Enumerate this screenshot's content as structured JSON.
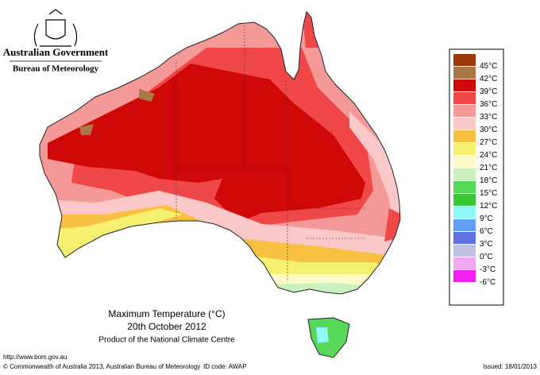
{
  "header": {
    "government": "Australian Government",
    "bureau": "Bureau of Meteorology"
  },
  "legend": {
    "items": [
      {
        "label": "45°C",
        "color": "#9a3a0a"
      },
      {
        "label": "42°C",
        "color": "#a87848"
      },
      {
        "label": "39°C",
        "color": "#d00808"
      },
      {
        "label": "36°C",
        "color": "#f04848"
      },
      {
        "label": "33°C",
        "color": "#f59898"
      },
      {
        "label": "30°C",
        "color": "#fac8c8"
      },
      {
        "label": "27°C",
        "color": "#f7c040"
      },
      {
        "label": "24°C",
        "color": "#f5f070"
      },
      {
        "label": "21°C",
        "color": "#fafac8"
      },
      {
        "label": "18°C",
        "color": "#c8f0c0"
      },
      {
        "label": "15°C",
        "color": "#58d858"
      },
      {
        "label": "12°C",
        "color": "#38c838"
      },
      {
        "label": "9°C",
        "color": "#90f8f8"
      },
      {
        "label": "6°C",
        "color": "#60a0f8"
      },
      {
        "label": "3°C",
        "color": "#6070e0"
      },
      {
        "label": "0°C",
        "color": "#c0c0e0"
      },
      {
        "label": "-3°C",
        "color": "#f0a8f0"
      },
      {
        "label": "-6°C",
        "color": "#f020f0"
      }
    ]
  },
  "caption": {
    "title": "Maximum Temperature (°C)",
    "date": "20th October 2012",
    "product": "Product of the National Climate Centre"
  },
  "footer": {
    "url": "http://www.bom.gov.au",
    "copyright": "© Commonwealth of Australia 2013, Australian Bureau of Meteorology",
    "id_code": "ID code: AWAP",
    "issued": "Issued: 18/01/2013"
  }
}
